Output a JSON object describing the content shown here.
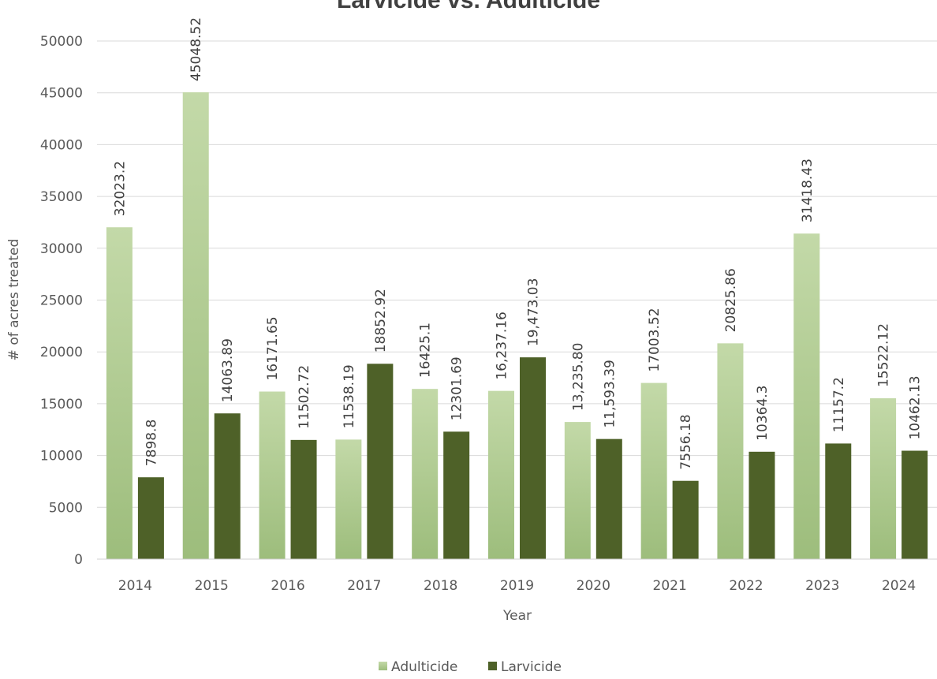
{
  "chart_data": {
    "type": "bar",
    "title": "Larvicide vs. Adulticide",
    "xlabel": "Year",
    "ylabel": "# of acres treated",
    "ylim": [
      0,
      50000
    ],
    "yticks": [
      "0",
      "5000",
      "10000",
      "15000",
      "20000",
      "25000",
      "30000",
      "35000",
      "40000",
      "45000",
      "50000"
    ],
    "categories": [
      "2014",
      "2015",
      "2016",
      "2017",
      "2018",
      "2019",
      "2020",
      "2021",
      "2022",
      "2023",
      "2024"
    ],
    "series": [
      {
        "name": "Adulticide",
        "color": "#a9c88a",
        "values": [
          32023.2,
          45048.52,
          16171.65,
          11538.19,
          16425.1,
          16237.16,
          13235.8,
          17003.52,
          20825.86,
          31418.43,
          15522.12
        ],
        "labels": [
          "32023.2",
          "45048.52",
          "16171.65",
          "11538.19",
          "16425.1",
          "16,237.16",
          "13,235.80",
          "17003.52",
          "20825.86",
          "31418.43",
          "15522.12"
        ]
      },
      {
        "name": "Larvicide",
        "color": "#4e6128",
        "values": [
          7898.8,
          14063.89,
          11502.72,
          18852.92,
          12301.69,
          19473.03,
          11593.39,
          7556.18,
          10364.3,
          11157.2,
          10462.13
        ],
        "labels": [
          "7898.8",
          "14063.89",
          "11502.72",
          "18852.92",
          "12301.69",
          "19,473.03",
          "11,593.39",
          "7556.18",
          "10364.3",
          "11157.2",
          "10462.13"
        ]
      }
    ],
    "grid": true,
    "legend": "bottom"
  }
}
